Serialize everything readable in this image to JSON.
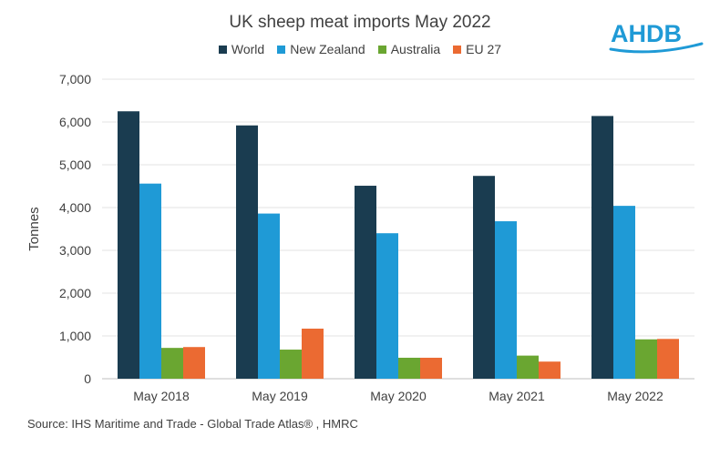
{
  "chart_data": {
    "type": "bar",
    "title": "UK sheep meat imports May 2022",
    "categories": [
      "May 2018",
      "May 2019",
      "May 2020",
      "May 2021",
      "May 2022"
    ],
    "series": [
      {
        "name": "World",
        "color": "#1a3c50",
        "values": [
          6250,
          5920,
          4510,
          4740,
          6140
        ]
      },
      {
        "name": "New Zealand",
        "color": "#1f9ad6",
        "values": [
          4560,
          3860,
          3400,
          3680,
          4040
        ]
      },
      {
        "name": "Australia",
        "color": "#6aa631",
        "values": [
          720,
          680,
          490,
          540,
          920
        ]
      },
      {
        "name": "EU 27",
        "color": "#eb6a32",
        "values": [
          740,
          1170,
          490,
          400,
          930
        ]
      }
    ],
    "ylabel": "Tonnes",
    "xlabel": "",
    "ylim": [
      0,
      7000
    ],
    "yticks": [
      0,
      1000,
      2000,
      3000,
      4000,
      5000,
      6000,
      7000
    ],
    "ytick_labels": [
      "0",
      "1,000",
      "2,000",
      "3,000",
      "4,000",
      "5,000",
      "6,000",
      "7,000"
    ],
    "grid": true,
    "legend_position": "top"
  },
  "logo": {
    "text": "AHDB",
    "color": "#1f9ad6"
  },
  "source": "Source: IHS Maritime and Trade - Global Trade Atlas® , HMRC"
}
